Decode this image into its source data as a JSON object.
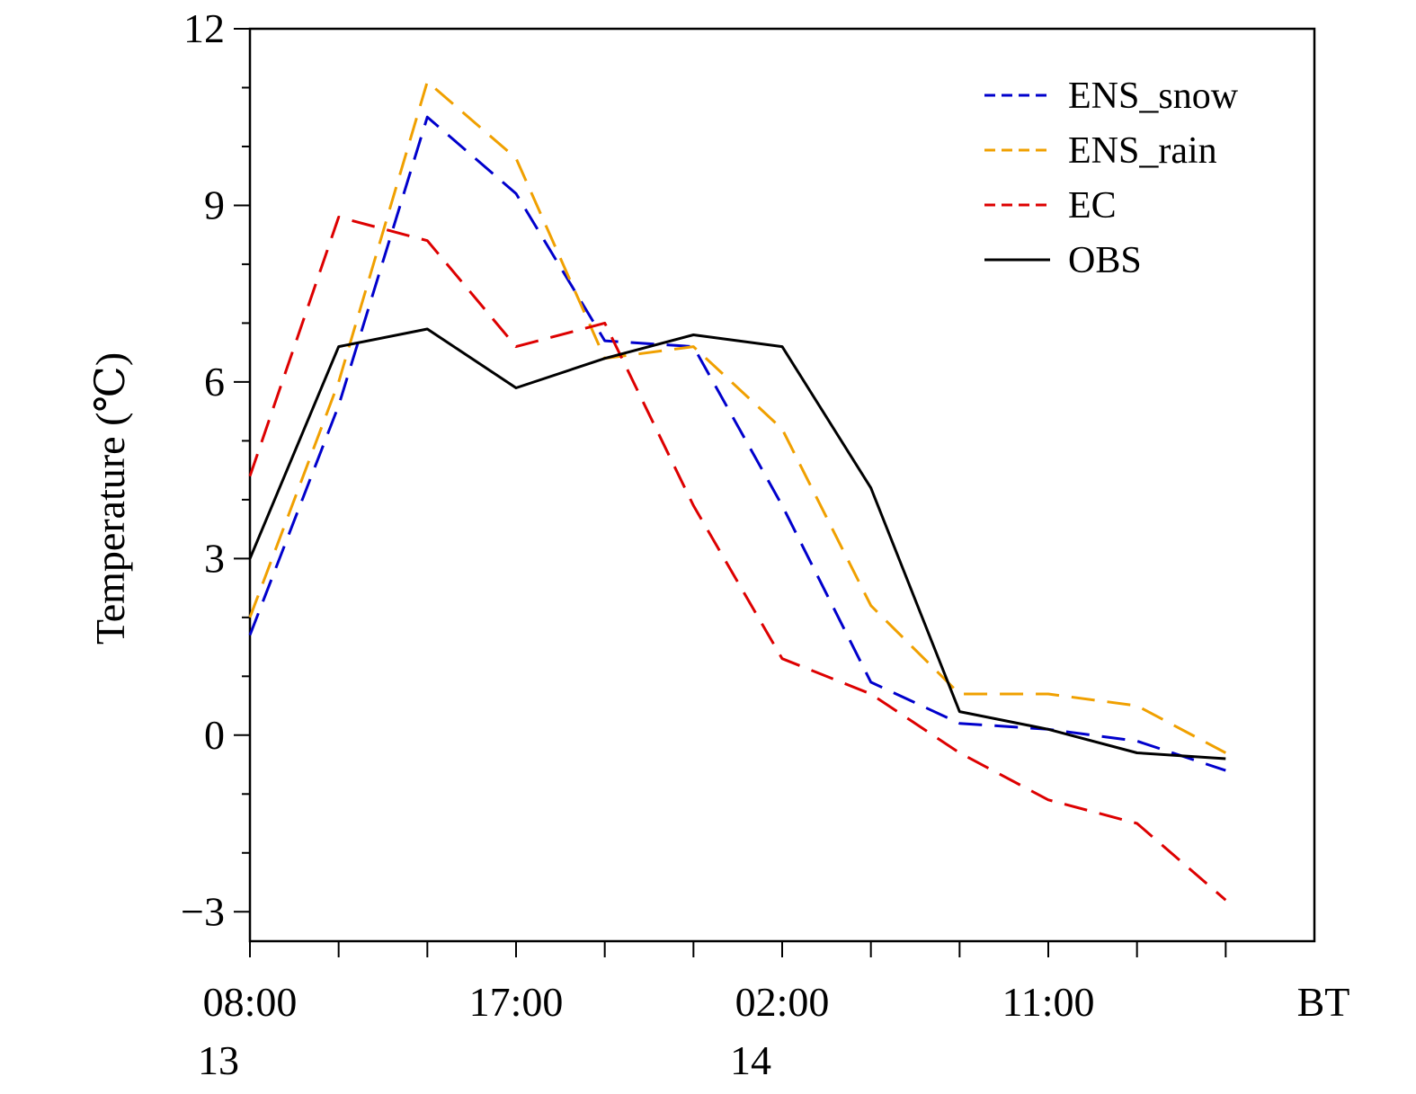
{
  "chart_data": {
    "type": "line",
    "ylabel": "Temperature (℃)",
    "ylim": [
      -3.5,
      12
    ],
    "yticks": [
      -3,
      0,
      3,
      6,
      9,
      12
    ],
    "yticklabels": [
      "−3",
      "0",
      "3",
      "6",
      "9",
      "12"
    ],
    "xticks": [
      0,
      9,
      18,
      27
    ],
    "xticklabels": [
      "08:00",
      "17:00",
      "02:00",
      "11:00"
    ],
    "xticklabels_day": [
      "13",
      "",
      "14",
      ""
    ],
    "x_unit_label": "BT",
    "x": [
      0,
      3,
      6,
      9,
      12,
      15,
      18,
      21,
      24,
      27,
      30,
      33
    ],
    "series": [
      {
        "name": "ENS_snow",
        "color": "#0000cc",
        "dash": "dashed",
        "values": [
          1.7,
          5.6,
          10.5,
          9.2,
          6.7,
          6.6,
          3.9,
          0.9,
          0.2,
          0.1,
          -0.1,
          -0.6
        ]
      },
      {
        "name": "ENS_rain",
        "color": "#f0a000",
        "dash": "dashed",
        "values": [
          2.0,
          6.0,
          11.1,
          9.8,
          6.4,
          6.6,
          5.2,
          2.2,
          0.7,
          0.7,
          0.5,
          -0.3
        ]
      },
      {
        "name": "EC",
        "color": "#dd0000",
        "dash": "dashed",
        "values": [
          4.4,
          8.8,
          8.4,
          6.6,
          7.0,
          3.9,
          1.3,
          0.7,
          -0.3,
          -1.1,
          -1.5,
          -2.8
        ]
      },
      {
        "name": "OBS",
        "color": "#000000",
        "dash": "solid",
        "values": [
          3.0,
          6.6,
          6.9,
          5.9,
          6.4,
          6.8,
          6.6,
          4.2,
          0.4,
          0.1,
          -0.3,
          -0.4
        ]
      }
    ],
    "legend_position": "top-right",
    "grid": false
  }
}
